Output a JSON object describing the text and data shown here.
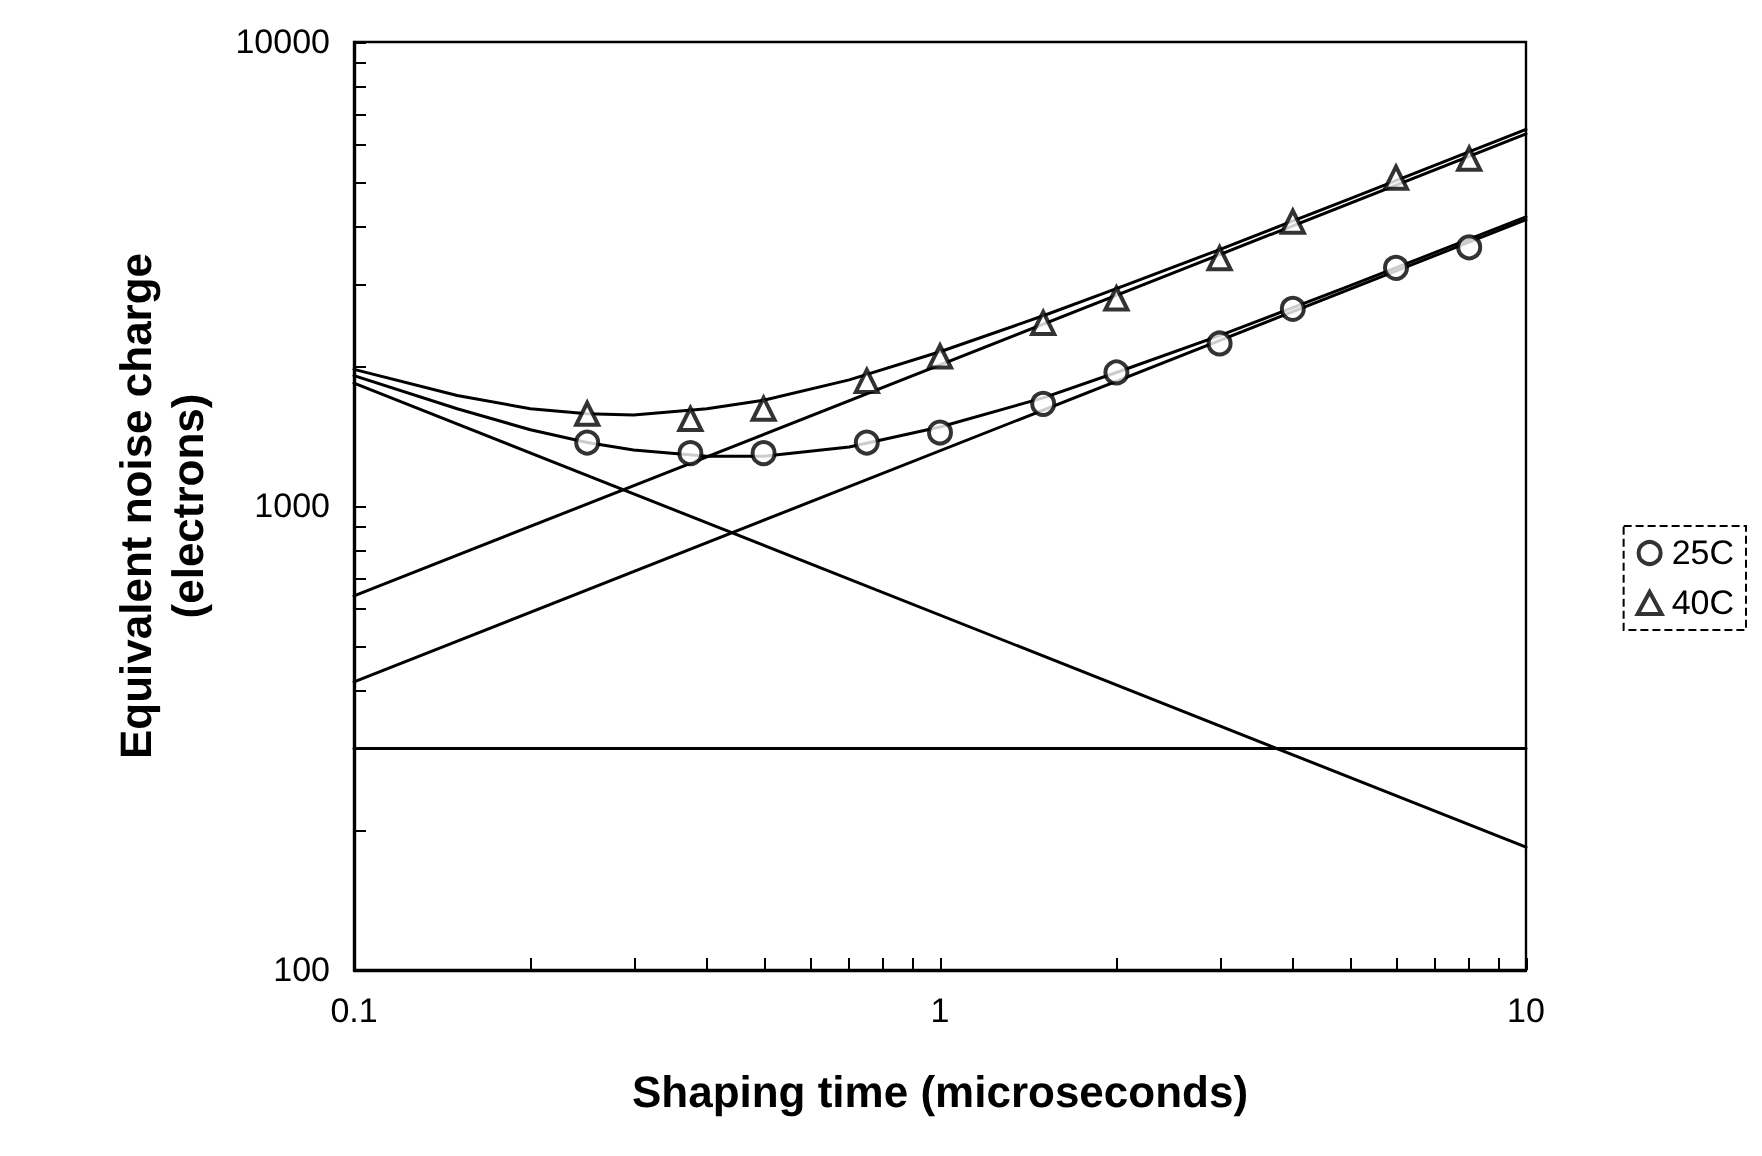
{
  "chart_data": {
    "type": "scatter",
    "xlabel": "Shaping time (microseconds)",
    "ylabel": "Equivalent noise charge\n(electrons)",
    "log": "xy",
    "grid": false,
    "legend": "right",
    "xlim": [
      0.1,
      10
    ],
    "ylim": [
      100,
      10000
    ],
    "xticks": [
      0.1,
      {
        "value": 0.2,
        "label": null
      },
      {
        "value": 0.3,
        "label": null
      },
      {
        "value": 0.4,
        "label": null
      },
      {
        "value": 0.5,
        "label": null
      },
      {
        "value": 0.6,
        "label": null
      },
      {
        "value": 0.7,
        "label": null
      },
      {
        "value": 0.8,
        "label": null
      },
      {
        "value": 0.9,
        "label": null
      },
      1,
      {
        "value": 2,
        "label": null
      },
      {
        "value": 3,
        "label": null
      },
      {
        "value": 4,
        "label": null
      },
      {
        "value": 5,
        "label": null
      },
      {
        "value": 6,
        "label": null
      },
      {
        "value": 7,
        "label": null
      },
      {
        "value": 8,
        "label": null
      },
      {
        "value": 9,
        "label": null
      },
      10
    ],
    "yticks": [
      100,
      {
        "value": 200,
        "label": null
      },
      {
        "value": 300,
        "label": null
      },
      {
        "value": 400,
        "label": null
      },
      {
        "value": 500,
        "label": null
      },
      {
        "value": 600,
        "label": null
      },
      {
        "value": 700,
        "label": null
      },
      {
        "value": 800,
        "label": null
      },
      {
        "value": 900,
        "label": null
      },
      1000,
      {
        "value": 2000,
        "label": null
      },
      {
        "value": 3000,
        "label": null
      },
      {
        "value": 4000,
        "label": null
      },
      {
        "value": 5000,
        "label": null
      },
      {
        "value": 6000,
        "label": null
      },
      {
        "value": 7000,
        "label": null
      },
      {
        "value": 8000,
        "label": null
      },
      {
        "value": 9000,
        "label": null
      },
      10000
    ],
    "series": [
      {
        "name": "25C",
        "marker": "circle",
        "color": "#000000",
        "x": [
          0.25,
          0.375,
          0.5,
          0.75,
          1,
          1.5,
          2,
          3,
          4,
          6,
          8
        ],
        "values": [
          1370,
          1300,
          1300,
          1370,
          1440,
          1660,
          1940,
          2240,
          2660,
          3260,
          3610
        ]
      },
      {
        "name": "40C",
        "marker": "triangle",
        "color": "#000000",
        "x": [
          0.25,
          0.375,
          0.5,
          0.75,
          1,
          1.5,
          2,
          3,
          4,
          6,
          8
        ],
        "values": [
          1580,
          1540,
          1620,
          1860,
          2100,
          2480,
          2800,
          3420,
          4100,
          5100,
          5600
        ]
      },
      {
        "type": "line",
        "marker": "none",
        "line_style": "solid",
        "color": "#000000",
        "x": [
          0.1,
          0.15,
          0.2,
          0.25,
          0.3,
          0.4,
          0.5,
          0.7,
          1,
          1.5,
          2,
          3,
          5,
          7,
          10
        ],
        "values": [
          1910,
          1620,
          1460,
          1370,
          1320,
          1280,
          1280,
          1340,
          1480,
          1710,
          1940,
          2330,
          2980,
          3520,
          4200
        ]
      },
      {
        "type": "line",
        "marker": "none",
        "line_style": "solid",
        "color": "#000000",
        "x": [
          0.1,
          0.15,
          0.2,
          0.25,
          0.3,
          0.4,
          0.5,
          0.7,
          1,
          1.5,
          2,
          3,
          5,
          7,
          10
        ],
        "values": [
          1970,
          1730,
          1620,
          1580,
          1570,
          1620,
          1690,
          1870,
          2150,
          2570,
          2940,
          3570,
          4590,
          5430,
          6480
        ]
      },
      {
        "type": "line",
        "marker": "none",
        "line_style": "solid",
        "color": "#000000",
        "x": [
          0.1,
          10
        ],
        "values": [
          1840,
          184
        ]
      },
      {
        "type": "line",
        "marker": "none",
        "line_style": "solid",
        "color": "#000000",
        "x": [
          0.1,
          10
        ],
        "values": [
          640,
          6340
        ]
      },
      {
        "type": "line",
        "marker": "none",
        "line_style": "solid",
        "color": "#000000",
        "x": [
          0.1,
          10
        ],
        "values": [
          418,
          4140
        ]
      },
      {
        "type": "line",
        "marker": "none",
        "line_style": "solid",
        "color": "#000000",
        "x": [
          0.1,
          10
        ],
        "values": [
          300,
          300
        ]
      }
    ]
  }
}
